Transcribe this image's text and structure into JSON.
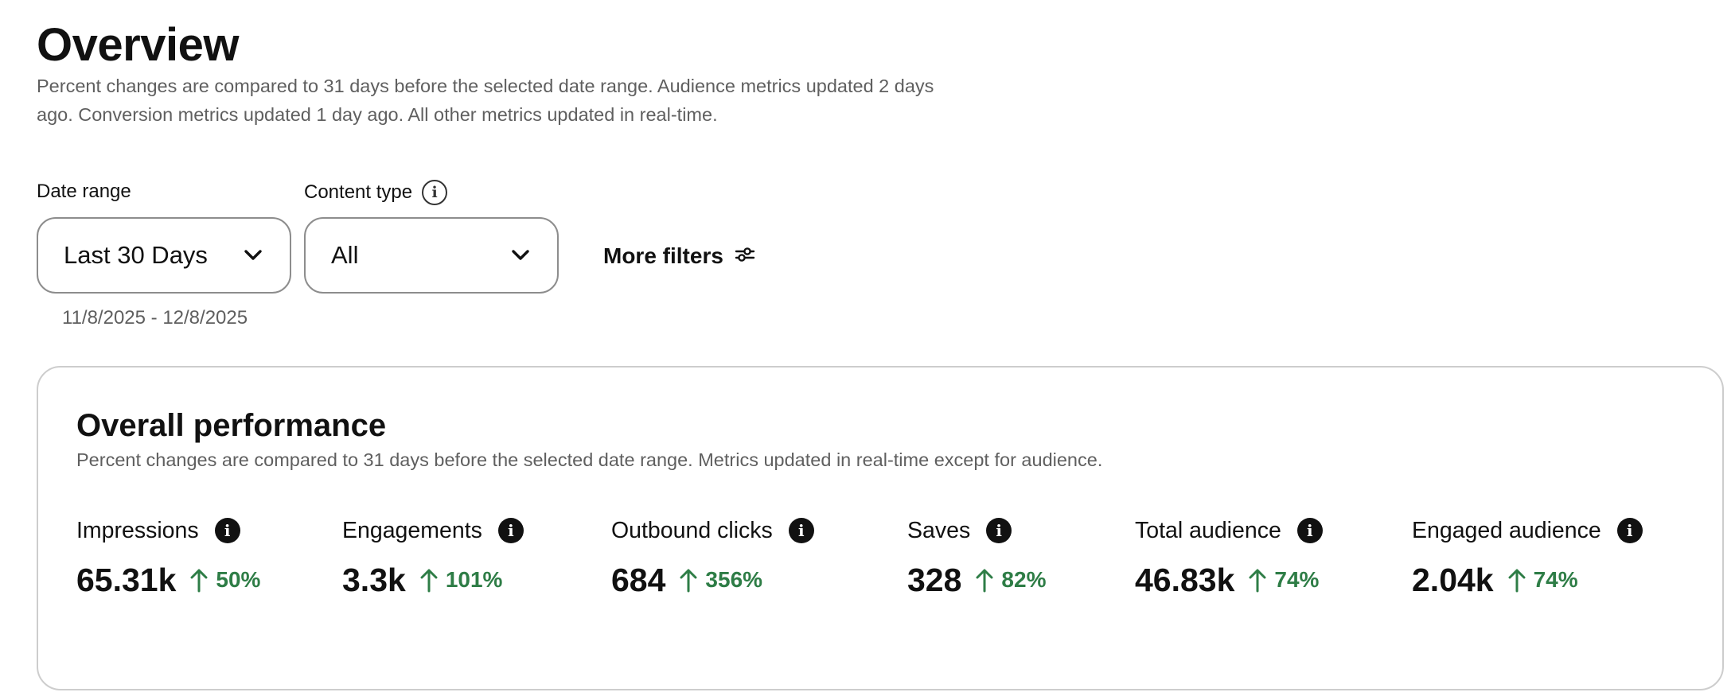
{
  "header": {
    "title": "Overview",
    "subtitle": "Percent changes are compared to 31 days before the selected date range. Audience metrics updated 2 days ago. Conversion metrics updated 1 day ago. All other metrics updated in real-time."
  },
  "filters": {
    "date_range": {
      "label": "Date range",
      "value": "Last 30 Days",
      "dates": "11/8/2025 - 12/8/2025"
    },
    "content_type": {
      "label": "Content type",
      "value": "All"
    },
    "more_filters_label": "More filters"
  },
  "performance": {
    "title": "Overall performance",
    "subtitle": "Percent changes are compared to 31 days before the selected date range. Metrics updated in real-time except for audience.",
    "metrics": [
      {
        "label": "Impressions",
        "value": "65.31k",
        "change": "50%"
      },
      {
        "label": "Engagements",
        "value": "3.3k",
        "change": "101%"
      },
      {
        "label": "Outbound clicks",
        "value": "684",
        "change": "356%"
      },
      {
        "label": "Saves",
        "value": "328",
        "change": "82%"
      },
      {
        "label": "Total audience",
        "value": "46.83k",
        "change": "74%"
      },
      {
        "label": "Engaged audience",
        "value": "2.04k",
        "change": "74%"
      }
    ]
  },
  "colors": {
    "positive": "#2e7d46",
    "muted_text": "#5f5f5f",
    "border": "#8d8d8d"
  },
  "icons": {
    "info_outline": "info-circle-outline-icon",
    "info_filled": "info-circle-filled-icon",
    "chevron": "chevron-down-icon",
    "filters": "sliders-icon",
    "trend_up": "arrow-up-icon"
  }
}
